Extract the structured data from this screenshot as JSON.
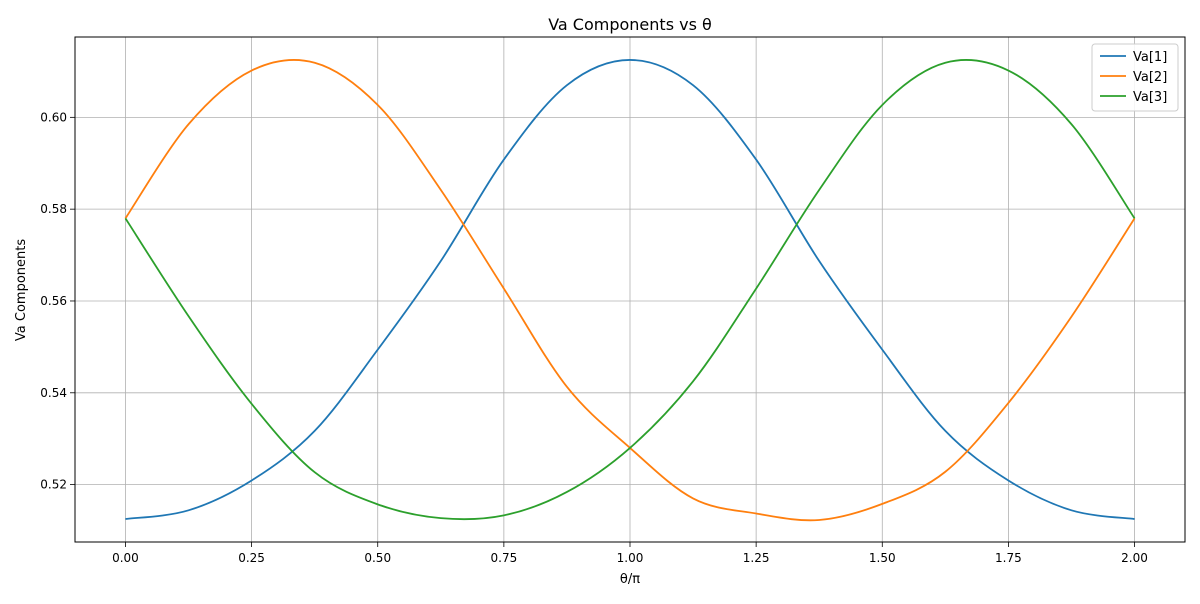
{
  "chart_data": {
    "type": "line",
    "title": "Va Components vs θ",
    "xlabel": "θ/π",
    "ylabel": "Va Components",
    "xlim": [
      -0.1,
      2.1
    ],
    "ylim": [
      0.5075,
      0.6175
    ],
    "xticks": [
      0.0,
      0.25,
      0.5,
      0.75,
      1.0,
      1.25,
      1.5,
      1.75,
      2.0
    ],
    "xtick_labels": [
      "0.00",
      "0.25",
      "0.50",
      "0.75",
      "1.00",
      "1.25",
      "1.50",
      "1.75",
      "2.00"
    ],
    "yticks": [
      0.52,
      0.54,
      0.56,
      0.58,
      0.6
    ],
    "ytick_labels": [
      "0.52",
      "0.54",
      "0.56",
      "0.58",
      "0.60"
    ],
    "grid": true,
    "legend_position": "top-right",
    "x": [
      0.0,
      0.125,
      0.25,
      0.375,
      0.5,
      0.625,
      0.75,
      0.875,
      1.0,
      1.125,
      1.25,
      1.375,
      1.5,
      1.625,
      1.75,
      1.875,
      2.0
    ],
    "series": [
      {
        "name": "Va[1]",
        "color": "#1f77b4",
        "values": [
          0.5125,
          0.5144,
          0.5209,
          0.5317,
          0.5494,
          0.5687,
          0.5908,
          0.607,
          0.6125,
          0.607,
          0.5908,
          0.5687,
          0.5494,
          0.5317,
          0.5209,
          0.5144,
          0.5125
        ]
      },
      {
        "name": "Va[2]",
        "color": "#ff7f0e",
        "values": [
          0.578,
          0.5985,
          0.6102,
          0.6119,
          0.6027,
          0.5842,
          0.5627,
          0.5413,
          0.528,
          0.517,
          0.5137,
          0.5123,
          0.5158,
          0.5228,
          0.5378,
          0.5566,
          0.578
        ]
      },
      {
        "name": "Va[3]",
        "color": "#2ca02c",
        "values": [
          0.578,
          0.5567,
          0.5376,
          0.5227,
          0.5157,
          0.5127,
          0.5133,
          0.5184,
          0.528,
          0.5425,
          0.5627,
          0.5842,
          0.6027,
          0.6119,
          0.6102,
          0.5985,
          0.578
        ]
      }
    ]
  }
}
